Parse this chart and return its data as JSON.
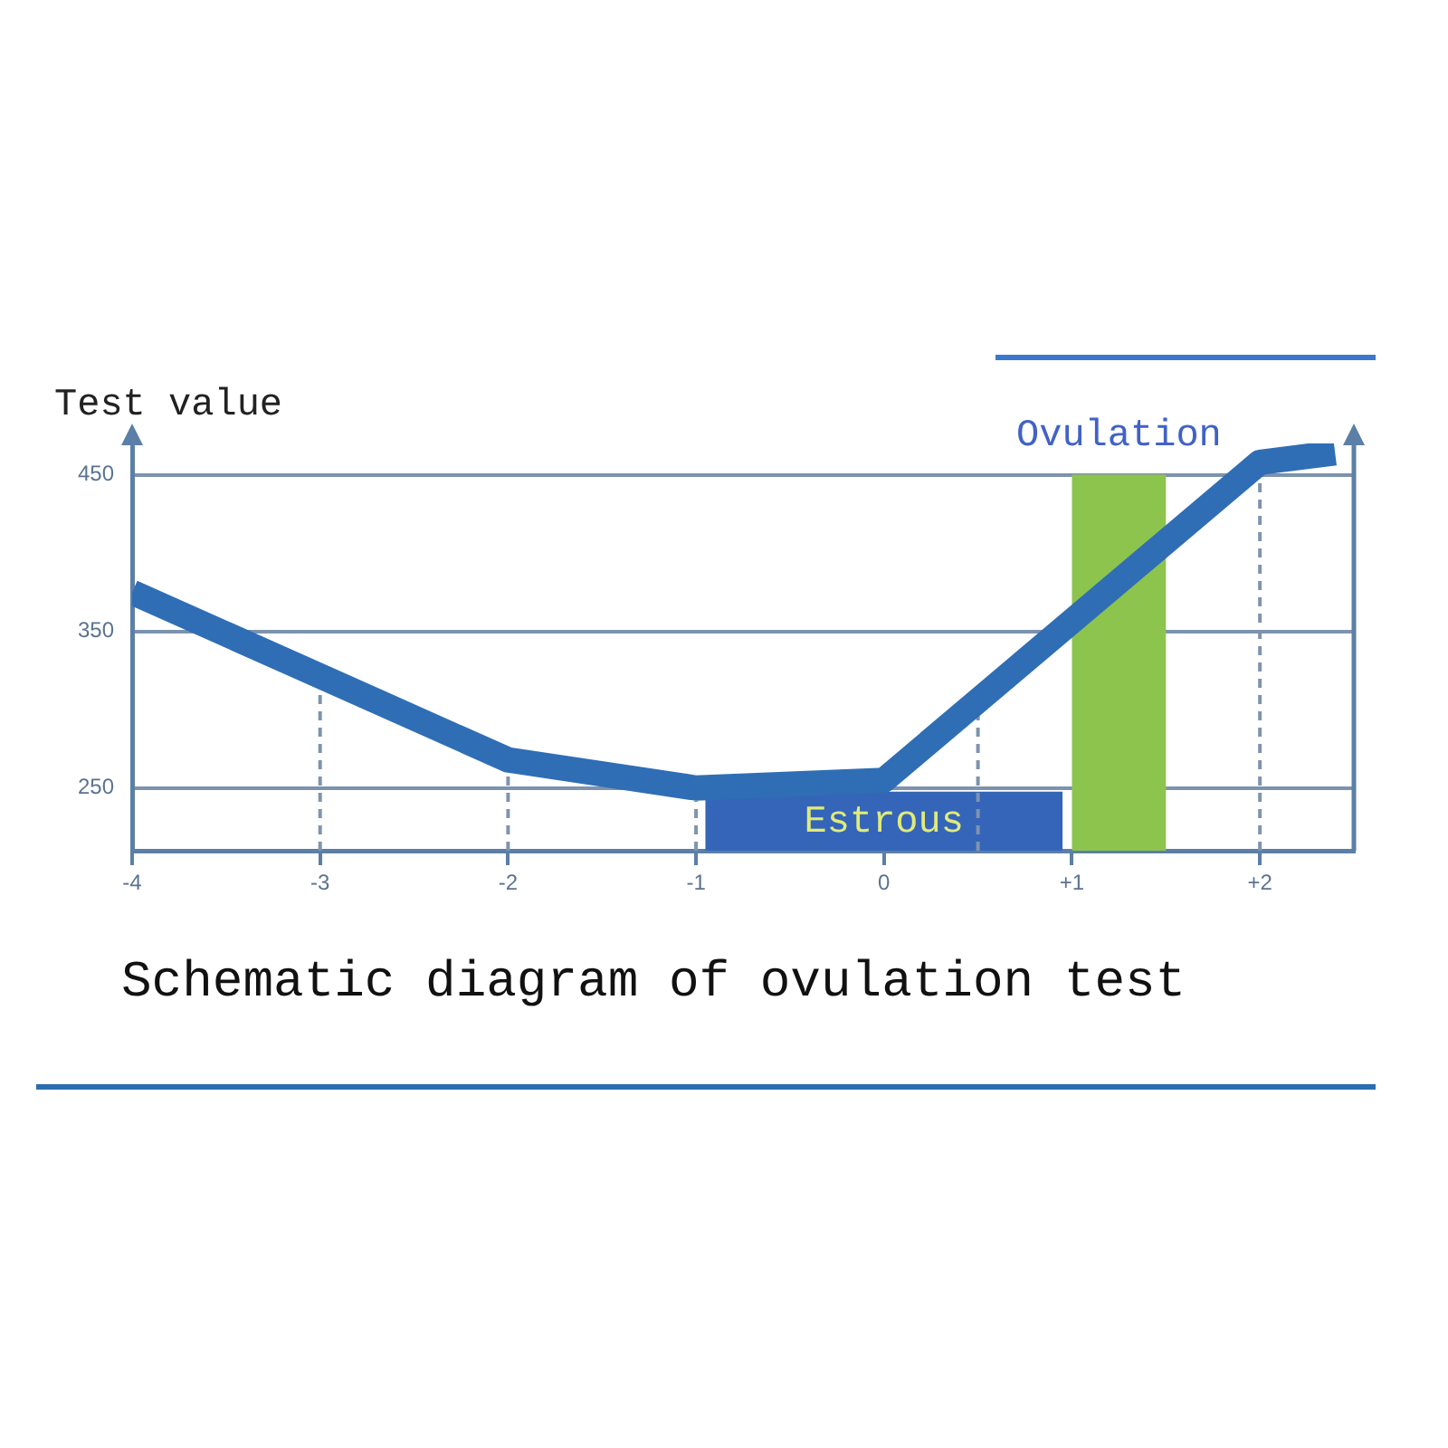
{
  "chart_data": {
    "type": "line",
    "title": "Schematic diagram of ovulation test",
    "ylabel": "Test value",
    "x": [
      -4,
      -2,
      -1,
      0,
      2,
      2.4
    ],
    "series": [
      {
        "color": "#2f6eb5",
        "values": [
          375,
          268,
          250,
          255,
          458,
          464
        ]
      }
    ],
    "xlim": [
      -4,
      2.5
    ],
    "ylim": [
      210,
      470
    ],
    "xticks": [
      -4,
      -3,
      -2,
      -1,
      0,
      {
        "value": 1,
        "label": "+1"
      },
      {
        "value": 2,
        "label": "+2"
      }
    ],
    "yticks": [
      250,
      350,
      450
    ],
    "grid": "y",
    "bands": [
      {
        "axis": "x",
        "from": -0.95,
        "to": 0.95,
        "label": "Estrous",
        "color": "#3565b8"
      },
      {
        "axis": "x",
        "from": 1,
        "to": 1.5,
        "label": "Ovulation",
        "color": "#8dc44e"
      }
    ],
    "ref_lines": [
      {
        "axis": "x",
        "value": -3,
        "color": "#7f94ad",
        "line_style": "dashed"
      },
      {
        "axis": "x",
        "value": -2,
        "color": "#7f94ad",
        "line_style": "dashed"
      },
      {
        "axis": "x",
        "value": -1,
        "color": "#7f94ad",
        "line_style": "dashed"
      },
      {
        "axis": "x",
        "value": 0.5,
        "color": "#7f94ad",
        "line_style": "dashed"
      },
      {
        "axis": "x",
        "value": 2,
        "color": "#7f94ad",
        "line_style": "dashed"
      }
    ]
  }
}
